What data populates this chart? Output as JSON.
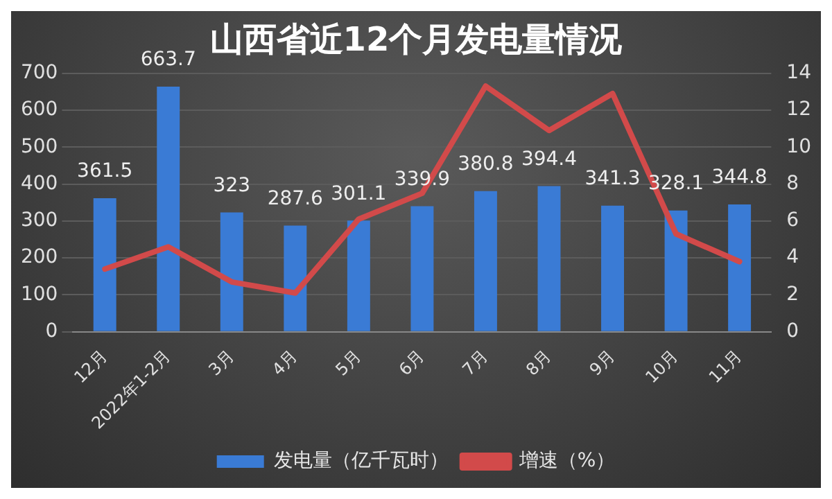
{
  "chart_data": {
    "type": "bar",
    "title": "山西省近12个月发电量情况",
    "categories": [
      "12月",
      "2022年1-2月",
      "3月",
      "4月",
      "5月",
      "6月",
      "7月",
      "8月",
      "9月",
      "10月",
      "11月"
    ],
    "series": [
      {
        "name": "发电量（亿千瓦时）",
        "color": "#3a7bd5",
        "values": [
          361.5,
          663.7,
          323,
          287.6,
          301.1,
          339.9,
          380.8,
          394.4,
          341.3,
          328.1,
          344.8
        ],
        "value_labels": [
          "361.5",
          "663.7",
          "323",
          "287.6",
          "301.1",
          "339.9",
          "380.8",
          "394.4",
          "341.3",
          "328.1",
          "344.8"
        ]
      },
      {
        "name": "增速（%）",
        "type": "line",
        "axis": "y2",
        "color": "#d24a4a",
        "values": [
          3.4,
          4.6,
          2.7,
          2.1,
          6.1,
          7.5,
          13.3,
          10.9,
          12.9,
          5.3,
          3.8
        ]
      }
    ],
    "ylim": [
      0,
      700
    ],
    "yticks": [
      0,
      100,
      200,
      300,
      400,
      500,
      600,
      700
    ],
    "y2lim": [
      0,
      14
    ],
    "y2ticks": [
      0,
      2,
      4,
      6,
      8,
      10,
      12,
      14
    ],
    "grid": "y",
    "legend": "bottom",
    "marker": "none",
    "line_style": "solid"
  }
}
